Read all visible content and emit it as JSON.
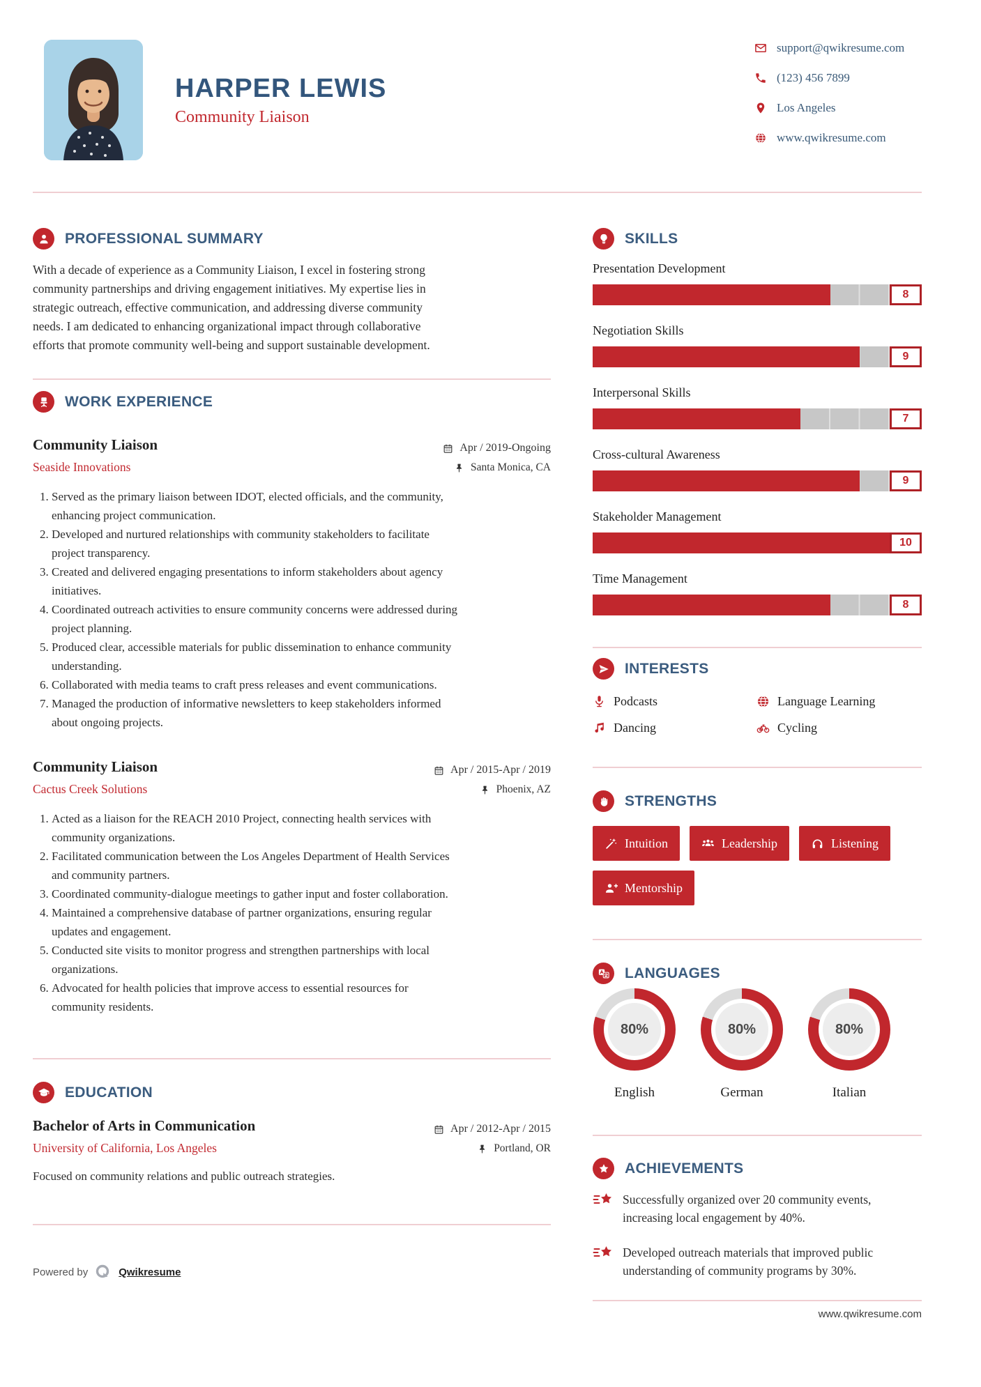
{
  "colors": {
    "accent_red": "#c1272d",
    "heading_blue": "#3b5c7f",
    "name_blue": "#33567c",
    "company_red": "#c22a31",
    "divider_pink": "#f0ced2",
    "bar_gray": "#c7c7c7"
  },
  "header": {
    "name": "HARPER LEWIS",
    "role": "Community Liaison",
    "contact": [
      {
        "icon": "envelope-icon",
        "text": "support@qwikresume.com"
      },
      {
        "icon": "phone-icon",
        "text": "(123) 456 7899"
      },
      {
        "icon": "map-pin-icon",
        "text": "Los Angeles"
      },
      {
        "icon": "globe-icon",
        "text": "www.qwikresume.com"
      }
    ]
  },
  "summary": {
    "heading": "PROFESSIONAL SUMMARY",
    "text": "With a decade of experience as a Community Liaison, I excel in fostering strong community partnerships and driving engagement initiatives. My expertise lies in strategic outreach, effective communication, and addressing diverse community needs. I am dedicated to enhancing organizational impact through collaborative efforts that promote community well-being and support sustainable development."
  },
  "work": {
    "heading": "WORK EXPERIENCE",
    "jobs": [
      {
        "title": "Community Liaison",
        "company": "Seaside Innovations",
        "date": "Apr / 2019-Ongoing",
        "location": "Santa Monica, CA",
        "bullets": [
          "Served as the primary liaison between IDOT, elected officials, and the community, enhancing project communication.",
          "Developed and nurtured relationships with community stakeholders to facilitate project transparency.",
          "Created and delivered engaging presentations to inform stakeholders about agency initiatives.",
          "Coordinated outreach activities to ensure community concerns were addressed during project planning.",
          "Produced clear, accessible materials for public dissemination to enhance community understanding.",
          "Collaborated with media teams to craft press releases and event communications.",
          "Managed the production of informative newsletters to keep stakeholders informed about ongoing projects."
        ]
      },
      {
        "title": "Community Liaison",
        "company": "Cactus Creek Solutions",
        "date": "Apr / 2015-Apr / 2019",
        "location": "Phoenix, AZ",
        "bullets": [
          "Acted as a liaison for the REACH 2010 Project, connecting health services with community organizations.",
          "Facilitated communication between the Los Angeles Department of Health Services and community partners.",
          "Coordinated community-dialogue meetings to gather input and foster collaboration.",
          "Maintained a comprehensive database of partner organizations, ensuring regular updates and engagement.",
          "Conducted site visits to monitor progress and strengthen partnerships with local organizations.",
          "Advocated for health policies that improve access to essential resources for community residents."
        ]
      }
    ]
  },
  "education": {
    "heading": "EDUCATION",
    "degree": "Bachelor of Arts in Communication",
    "school": "University of California, Los Angeles",
    "date": "Apr / 2012-Apr / 2015",
    "location": "Portland, OR",
    "description": "Focused on community relations and public outreach strategies."
  },
  "skills": {
    "heading": "SKILLS",
    "max": 10,
    "items": [
      {
        "label": "Presentation Development",
        "value": 8
      },
      {
        "label": "Negotiation Skills",
        "value": 9
      },
      {
        "label": "Interpersonal Skills",
        "value": 7
      },
      {
        "label": "Cross-cultural Awareness",
        "value": 9
      },
      {
        "label": "Stakeholder Management",
        "value": 10
      },
      {
        "label": "Time Management",
        "value": 8
      }
    ]
  },
  "interests": {
    "heading": "INTERESTS",
    "items": [
      {
        "icon": "microphone-icon",
        "label": "Podcasts"
      },
      {
        "icon": "globe-icon",
        "label": "Language Learning"
      },
      {
        "icon": "music-note-icon",
        "label": "Dancing"
      },
      {
        "icon": "bicycle-icon",
        "label": "Cycling"
      }
    ]
  },
  "strengths": {
    "heading": "STRENGTHS",
    "items": [
      {
        "icon": "wand-icon",
        "label": "Intuition"
      },
      {
        "icon": "team-icon",
        "label": "Leadership"
      },
      {
        "icon": "headphones-icon",
        "label": "Listening"
      },
      {
        "icon": "person-plus-icon",
        "label": "Mentorship"
      }
    ]
  },
  "languages": {
    "heading": "LANGUAGES",
    "items": [
      {
        "name": "English",
        "percent": 80,
        "label": "80%"
      },
      {
        "name": "German",
        "percent": 80,
        "label": "80%"
      },
      {
        "name": "Italian",
        "percent": 80,
        "label": "80%"
      }
    ]
  },
  "achievements": {
    "heading": "ACHIEVEMENTS",
    "items": [
      "Successfully organized over 20 community events, increasing local engagement by 40%.",
      "Developed outreach materials that improved public understanding of community programs by 30%."
    ]
  },
  "footer": {
    "powered_by": "Powered by",
    "brand": "Qwikresume",
    "website": "www.qwikresume.com"
  }
}
